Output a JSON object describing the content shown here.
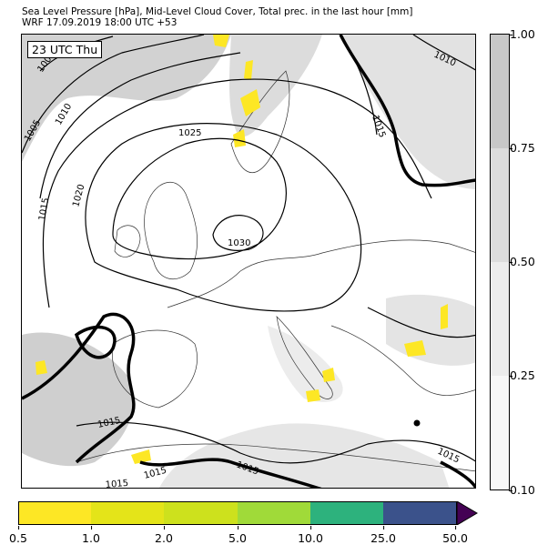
{
  "header": {
    "title_line1": "Sea Level Pressure [hPa], Mid-Level Cloud Cover, Total prec. in the last hour [mm]",
    "title_line2": "WRF 17.09.2019 18:00 UTC +53"
  },
  "map": {
    "time_label": "23 UTC Thu",
    "isobar_labels": [
      "1000",
      "1005",
      "1010",
      "1010",
      "1015",
      "1015",
      "1015",
      "1015",
      "1015",
      "1015",
      "1015",
      "1020",
      "1025",
      "1030"
    ]
  },
  "cloud_colorbar": {
    "ticks": [
      "1.00",
      "0.75",
      "0.50",
      "0.25",
      "0.10"
    ],
    "colors": [
      "#c8c8c8",
      "#dcdcdc",
      "#ececec",
      "#f7f7f7"
    ]
  },
  "precip_colorbar": {
    "ticks": [
      "0.5",
      "1.0",
      "2.0",
      "5.0",
      "10.0",
      "25.0",
      "50.0"
    ],
    "colors": [
      "#fde725",
      "#e4e419",
      "#cde11d",
      "#a0da39",
      "#2db27d",
      "#3b528b",
      "#440154"
    ]
  },
  "chart_data": {
    "type": "map",
    "title": "Sea Level Pressure [hPa], Mid-Level Cloud Cover, Total prec. in the last hour [mm]",
    "subtitle": "WRF 17.09.2019 18:00 UTC +53",
    "time_label": "23 UTC Thu",
    "isobar_levels_hpa": [
      1000,
      1005,
      1010,
      1015,
      1020,
      1025,
      1030
    ],
    "cloud_cover_levels": [
      0.1,
      0.25,
      0.5,
      0.75,
      1.0
    ],
    "precip_levels_mm": [
      0.5,
      1.0,
      2.0,
      5.0,
      10.0,
      25.0,
      50.0
    ]
  }
}
